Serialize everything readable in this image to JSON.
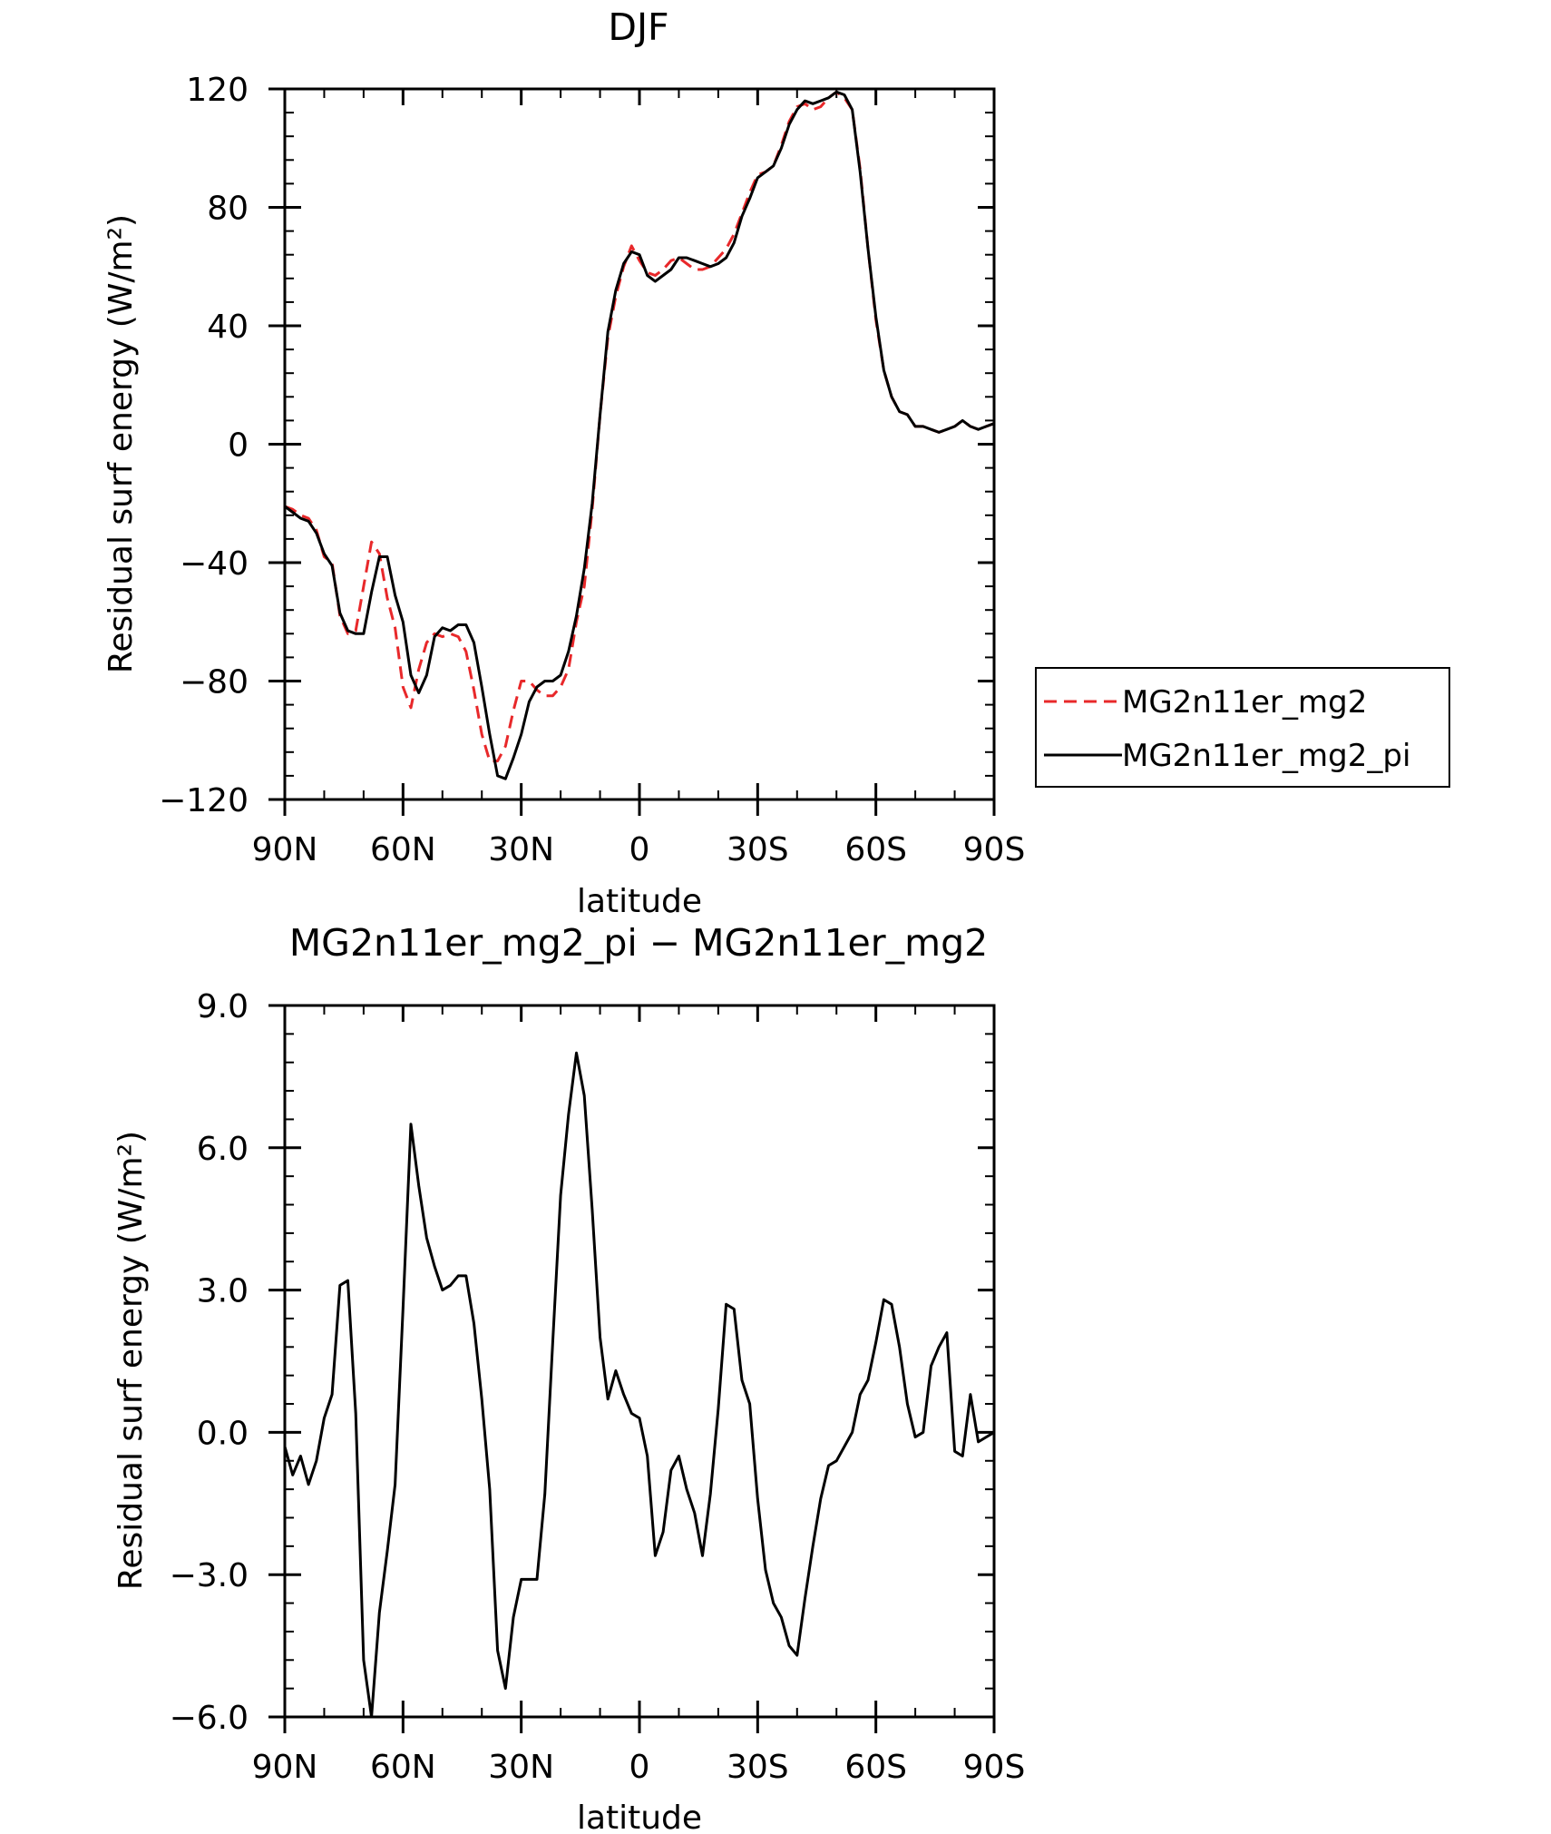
{
  "chart_data": [
    {
      "type": "line",
      "title": "DJF",
      "xlabel": "latitude",
      "ylabel": "Residual surf energy (W/m²)",
      "x_ticks": [
        "90N",
        "60N",
        "30N",
        "0",
        "30S",
        "60S",
        "90S"
      ],
      "y_ticks": [
        "120",
        "80",
        "40",
        "0",
        "−40",
        "−80",
        "−120"
      ],
      "xlim": [
        90,
        -90
      ],
      "ylim": [
        -120,
        120
      ],
      "legend": {
        "position": "right",
        "entries": [
          "MG2n11er_mg2",
          "MG2n11er_mg2_pi"
        ]
      },
      "x": [
        90,
        88,
        86,
        84,
        82,
        80,
        78,
        76,
        74,
        72,
        70,
        68,
        66,
        64,
        62,
        60,
        58,
        56,
        54,
        52,
        50,
        48,
        46,
        44,
        42,
        40,
        38,
        36,
        34,
        32,
        30,
        28,
        26,
        24,
        22,
        20,
        18,
        16,
        14,
        12,
        10,
        8,
        6,
        4,
        2,
        0,
        -2,
        -4,
        -6,
        -8,
        -10,
        -12,
        -14,
        -16,
        -18,
        -20,
        -22,
        -24,
        -26,
        -28,
        -30,
        -32,
        -34,
        -36,
        -38,
        -40,
        -42,
        -44,
        -46,
        -48,
        -50,
        -52,
        -54,
        -56,
        -58,
        -60,
        -62,
        -64,
        -66,
        -68,
        -70,
        -72,
        -74,
        -76,
        -78,
        -80,
        -82,
        -84,
        -86,
        -88,
        -90
      ],
      "series": [
        {
          "name": "MG2n11er_mg2",
          "color": "#e8282a",
          "style": "dashed",
          "values": [
            -21,
            -22,
            -24,
            -25,
            -29,
            -38,
            -40,
            -58,
            -64,
            -63,
            -48,
            -33,
            -37,
            -52,
            -62,
            -82,
            -89,
            -76,
            -67,
            -64,
            -65,
            -64,
            -65,
            -70,
            -83,
            -98,
            -107,
            -107,
            -102,
            -90,
            -80,
            -80,
            -83,
            -85,
            -85,
            -82,
            -76,
            -60,
            -48,
            -22,
            10,
            36,
            50,
            60,
            67,
            62,
            58,
            57,
            59,
            62,
            63,
            61,
            59,
            59,
            60,
            63,
            66,
            71,
            78,
            85,
            91,
            92,
            94,
            101,
            109,
            114,
            115,
            113,
            114,
            117,
            119,
            117,
            113,
            93,
            66,
            42,
            25,
            16,
            11,
            10,
            6,
            6,
            5,
            4,
            5,
            6,
            8,
            6,
            5,
            6,
            7
          ]
        },
        {
          "name": "MG2n11er_mg2_pi",
          "color": "#000000",
          "style": "solid",
          "values": [
            -21,
            -23,
            -25,
            -26,
            -30,
            -37,
            -41,
            -57,
            -63,
            -64,
            -64,
            -50,
            -38,
            -38,
            -51,
            -60,
            -78,
            -84,
            -78,
            -65,
            -62,
            -63,
            -61,
            -61,
            -67,
            -82,
            -98,
            -112,
            -113,
            -106,
            -98,
            -87,
            -82,
            -80,
            -80,
            -78,
            -70,
            -58,
            -42,
            -20,
            10,
            38,
            52,
            61,
            65,
            64,
            57,
            55,
            57,
            59,
            63,
            63,
            62,
            61,
            60,
            61,
            63,
            68,
            77,
            83,
            90,
            92,
            94,
            100,
            108,
            113,
            116,
            115,
            116,
            117,
            119,
            118,
            113,
            92,
            66,
            43,
            25,
            16,
            11,
            10,
            6,
            6,
            5,
            4,
            5,
            6,
            8,
            6,
            5,
            6,
            7
          ]
        }
      ]
    },
    {
      "type": "line",
      "title": "MG2n11er_mg2_pi − MG2n11er_mg2",
      "xlabel": "latitude",
      "ylabel": "Residual surf energy (W/m²)",
      "x_ticks": [
        "90N",
        "60N",
        "30N",
        "0",
        "30S",
        "60S",
        "90S"
      ],
      "y_ticks": [
        "9.0",
        "6.0",
        "3.0",
        "0.0",
        "−3.0",
        "−6.0"
      ],
      "xlim": [
        90,
        -90
      ],
      "ylim": [
        -6,
        9
      ],
      "x": [
        90,
        88,
        86,
        84,
        82,
        80,
        78,
        76,
        74,
        72,
        70,
        68,
        66,
        64,
        62,
        60,
        58,
        56,
        54,
        52,
        50,
        48,
        46,
        44,
        42,
        40,
        38,
        36,
        34,
        32,
        30,
        28,
        26,
        24,
        22,
        20,
        18,
        16,
        14,
        12,
        10,
        8,
        6,
        4,
        2,
        0,
        -2,
        -4,
        -6,
        -8,
        -10,
        -12,
        -14,
        -16,
        -18,
        -20,
        -22,
        -24,
        -26,
        -28,
        -30,
        -32,
        -34,
        -36,
        -38,
        -40,
        -42,
        -44,
        -46,
        -48,
        -50,
        -52,
        -54,
        -56,
        -58,
        -60,
        -62,
        -64,
        -66,
        -68,
        -70,
        -72,
        -74,
        -76,
        -78,
        -80,
        -82,
        -84,
        -86,
        -88,
        -90
      ],
      "series": [
        {
          "color": "#000000",
          "style": "solid",
          "values": [
            -0.3,
            -0.9,
            -0.5,
            -1.1,
            -0.6,
            0.3,
            0.8,
            3.1,
            3.2,
            0.4,
            -4.8,
            -6.0,
            -3.8,
            -2.5,
            -1.1,
            2.6,
            6.5,
            5.2,
            4.1,
            3.5,
            3.0,
            3.1,
            3.3,
            3.3,
            2.3,
            0.7,
            -1.2,
            -4.6,
            -5.4,
            -3.9,
            -3.1,
            -3.1,
            -3.1,
            -1.3,
            1.9,
            5.0,
            6.7,
            8.0,
            7.1,
            4.7,
            2.0,
            0.7,
            1.3,
            0.8,
            0.4,
            0.3,
            -0.5,
            -2.6,
            -2.1,
            -0.8,
            -0.5,
            -1.2,
            -1.7,
            -2.6,
            -1.3,
            0.5,
            2.7,
            2.6,
            1.1,
            0.6,
            -1.4,
            -2.9,
            -3.6,
            -3.9,
            -4.5,
            -4.7,
            -3.5,
            -2.4,
            -1.4,
            -0.7,
            -0.6,
            -0.3,
            0.0,
            0.8,
            1.1,
            1.9,
            2.8,
            2.7,
            1.8,
            0.6,
            -0.1,
            0.0,
            1.4,
            1.8,
            2.1,
            -0.4,
            -0.5,
            0.8,
            -0.2,
            -0.1,
            0.0
          ]
        }
      ]
    }
  ]
}
